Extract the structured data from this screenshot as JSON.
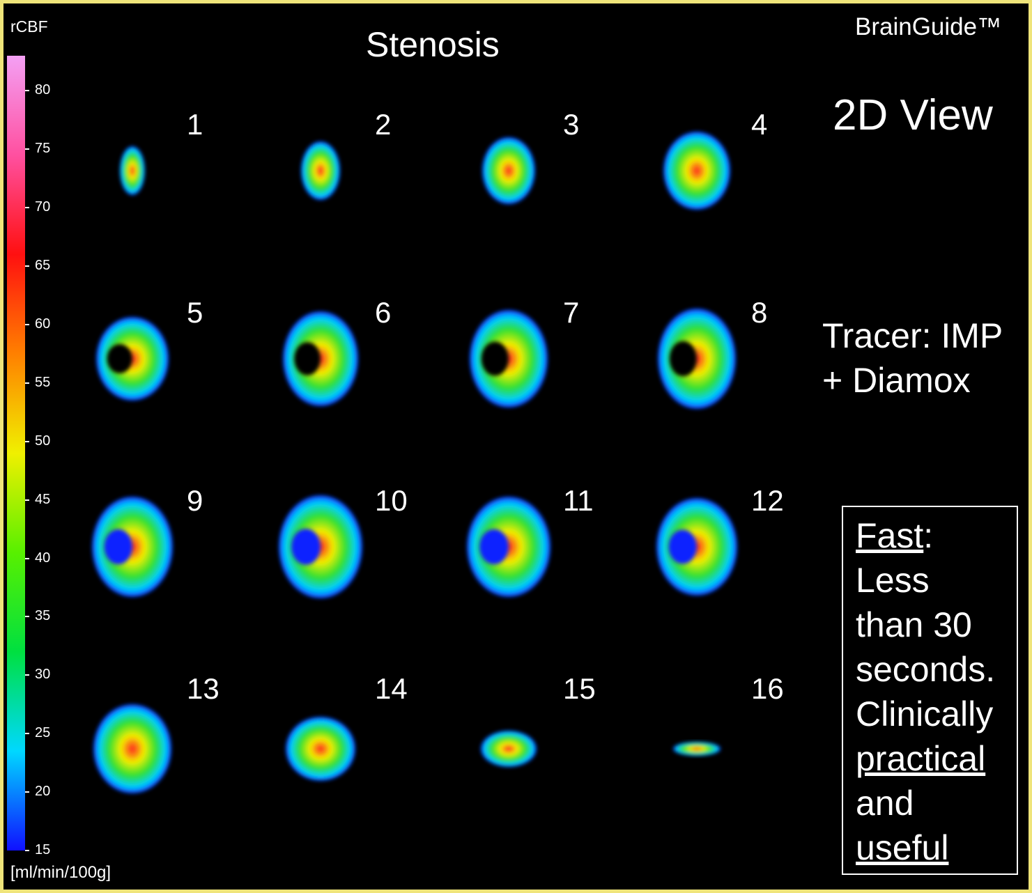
{
  "header": {
    "scale_title": "rCBF",
    "title": "Stenosis",
    "brand": "BrainGuide™",
    "view": "2D View",
    "tracer_line1": "Tracer: IMP",
    "tracer_line2": "+ Diamox"
  },
  "colorbar": {
    "units": "[ml/min/100g]",
    "min": 15,
    "max": 83,
    "ticks": [
      "80",
      "75",
      "70",
      "65",
      "60",
      "55",
      "50",
      "45",
      "40",
      "35",
      "30",
      "25",
      "20",
      "15"
    ],
    "stops": [
      "#1010ff",
      "#00d8ff",
      "#00e040",
      "#58f000",
      "#f0f000",
      "#ff8000",
      "#ff1010",
      "#ff50a0",
      "#f4a0f4"
    ]
  },
  "slices": [
    "1",
    "2",
    "3",
    "4",
    "5",
    "6",
    "7",
    "8",
    "9",
    "10",
    "11",
    "12",
    "13",
    "14",
    "15",
    "16"
  ],
  "note": {
    "fast": "Fast",
    "colon": ":",
    "line2": "Less",
    "line3": "than 30",
    "line4": "seconds.",
    "line5": "Clinically",
    "line6": "practical",
    "line7": "and",
    "line8": "useful"
  }
}
